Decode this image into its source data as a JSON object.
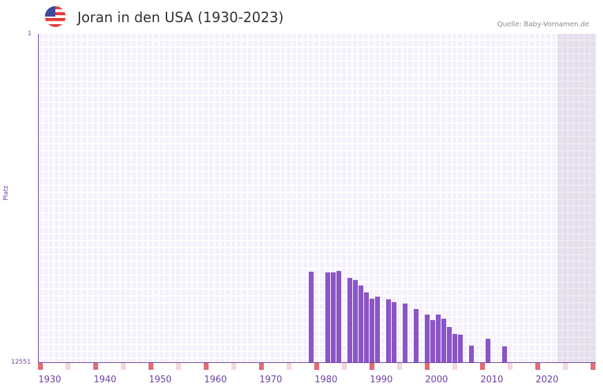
{
  "header": {
    "flag_icon": "us-flag-icon",
    "title": "Joran in den USA (1930-2023)",
    "source": "Quelle: Baby-Vornamen.de"
  },
  "chart_data": {
    "type": "bar",
    "title": "Joran in den USA (1930-2023)",
    "xlabel": "",
    "ylabel": "Platz",
    "y_inverted": true,
    "ylim": [
      12551,
      1
    ],
    "y_tick_labels": [
      "1",
      "12551"
    ],
    "x_tick_labels": [
      "1930",
      "1940",
      "1950",
      "1960",
      "1970",
      "1980",
      "1990",
      "2000",
      "2010",
      "2020"
    ],
    "xlim": [
      1928,
      2028
    ],
    "future_shaded_from": 2022,
    "grid": true,
    "x": [
      1977,
      1980,
      1981,
      1982,
      1984,
      1985,
      1986,
      1987,
      1988,
      1989,
      1991,
      1992,
      1994,
      1996,
      1998,
      1999,
      2000,
      2001,
      2002,
      2003,
      2004,
      2006,
      2009,
      2012
    ],
    "values": [
      9090,
      9120,
      9120,
      9070,
      9330,
      9410,
      9620,
      9880,
      10120,
      10040,
      10150,
      10250,
      10310,
      10520,
      10730,
      10940,
      10730,
      10890,
      11200,
      11470,
      11490,
      11920,
      11650,
      11950
    ],
    "colors": {
      "bar": "#8a55c6",
      "axis": "#6a3fa0",
      "decade_marker": "#e06c75",
      "half_decade_marker": "#f5d6de"
    }
  }
}
